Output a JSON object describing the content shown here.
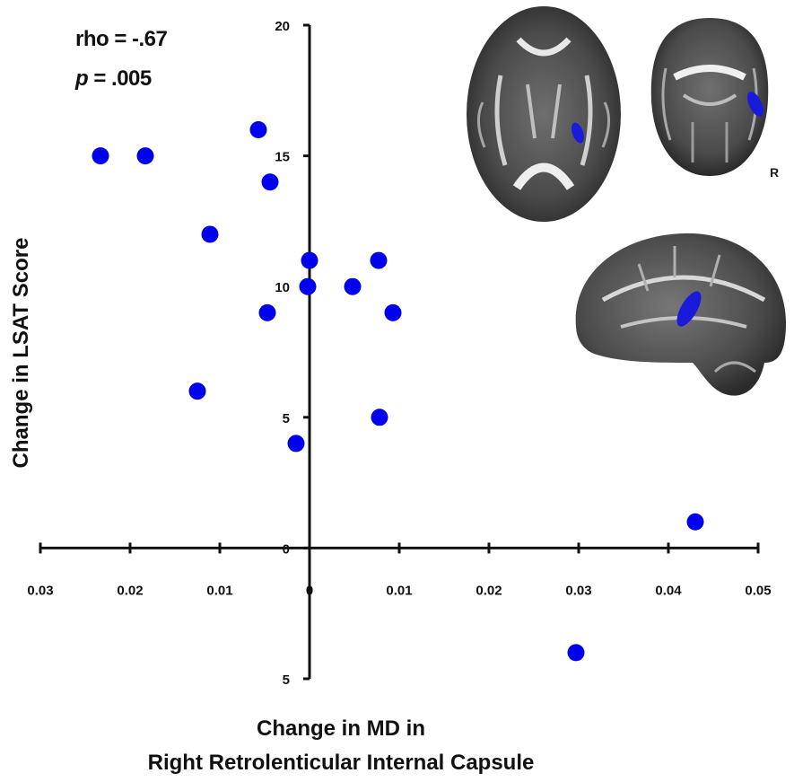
{
  "stats": {
    "rho_label": "rho = -.67",
    "p_symbol": "p",
    "p_value": " = .005"
  },
  "orientation_label": "R",
  "chart_data": {
    "type": "scatter",
    "xlabel_line1": "Change in MD in",
    "xlabel_line2": "Right Retrolenticular Internal Capsule",
    "ylabel": "Change in LSAT Score",
    "xlim": [
      -0.03,
      0.05
    ],
    "ylim": [
      -5,
      20
    ],
    "x_ticks": [
      -0.03,
      -0.02,
      -0.01,
      0,
      0.01,
      0.02,
      0.03,
      0.04,
      0.05
    ],
    "x_tick_labels": [
      "0.03",
      "0.02",
      "0.01",
      "0",
      "0.01",
      "0.02",
      "0.03",
      "0.04",
      "0.05"
    ],
    "y_ticks": [
      -5,
      0,
      5,
      10,
      15,
      20
    ],
    "y_tick_labels": [
      "5",
      "0",
      "5",
      "10",
      "15",
      "20"
    ],
    "marker_color": "#0000ee",
    "grid": false,
    "points": [
      {
        "x": -0.0233,
        "y": 15
      },
      {
        "x": -0.0183,
        "y": 15
      },
      {
        "x": -0.0057,
        "y": 16
      },
      {
        "x": -0.0044,
        "y": 14
      },
      {
        "x": -0.0111,
        "y": 12
      },
      {
        "x": -0.0047,
        "y": 9
      },
      {
        "x": -0.0125,
        "y": 6
      },
      {
        "x": -0.0015,
        "y": 4
      },
      {
        "x": 0.0,
        "y": 11
      },
      {
        "x": -0.0002,
        "y": 10
      },
      {
        "x": 0.0048,
        "y": 10
      },
      {
        "x": 0.0077,
        "y": 11
      },
      {
        "x": 0.0093,
        "y": 9
      },
      {
        "x": 0.0078,
        "y": 5
      },
      {
        "x": 0.0297,
        "y": -4
      },
      {
        "x": 0.043,
        "y": 1
      }
    ]
  },
  "brain_images": {
    "highlight_color": "#1a1adc",
    "views": [
      "axial",
      "coronal",
      "sagittal"
    ]
  }
}
